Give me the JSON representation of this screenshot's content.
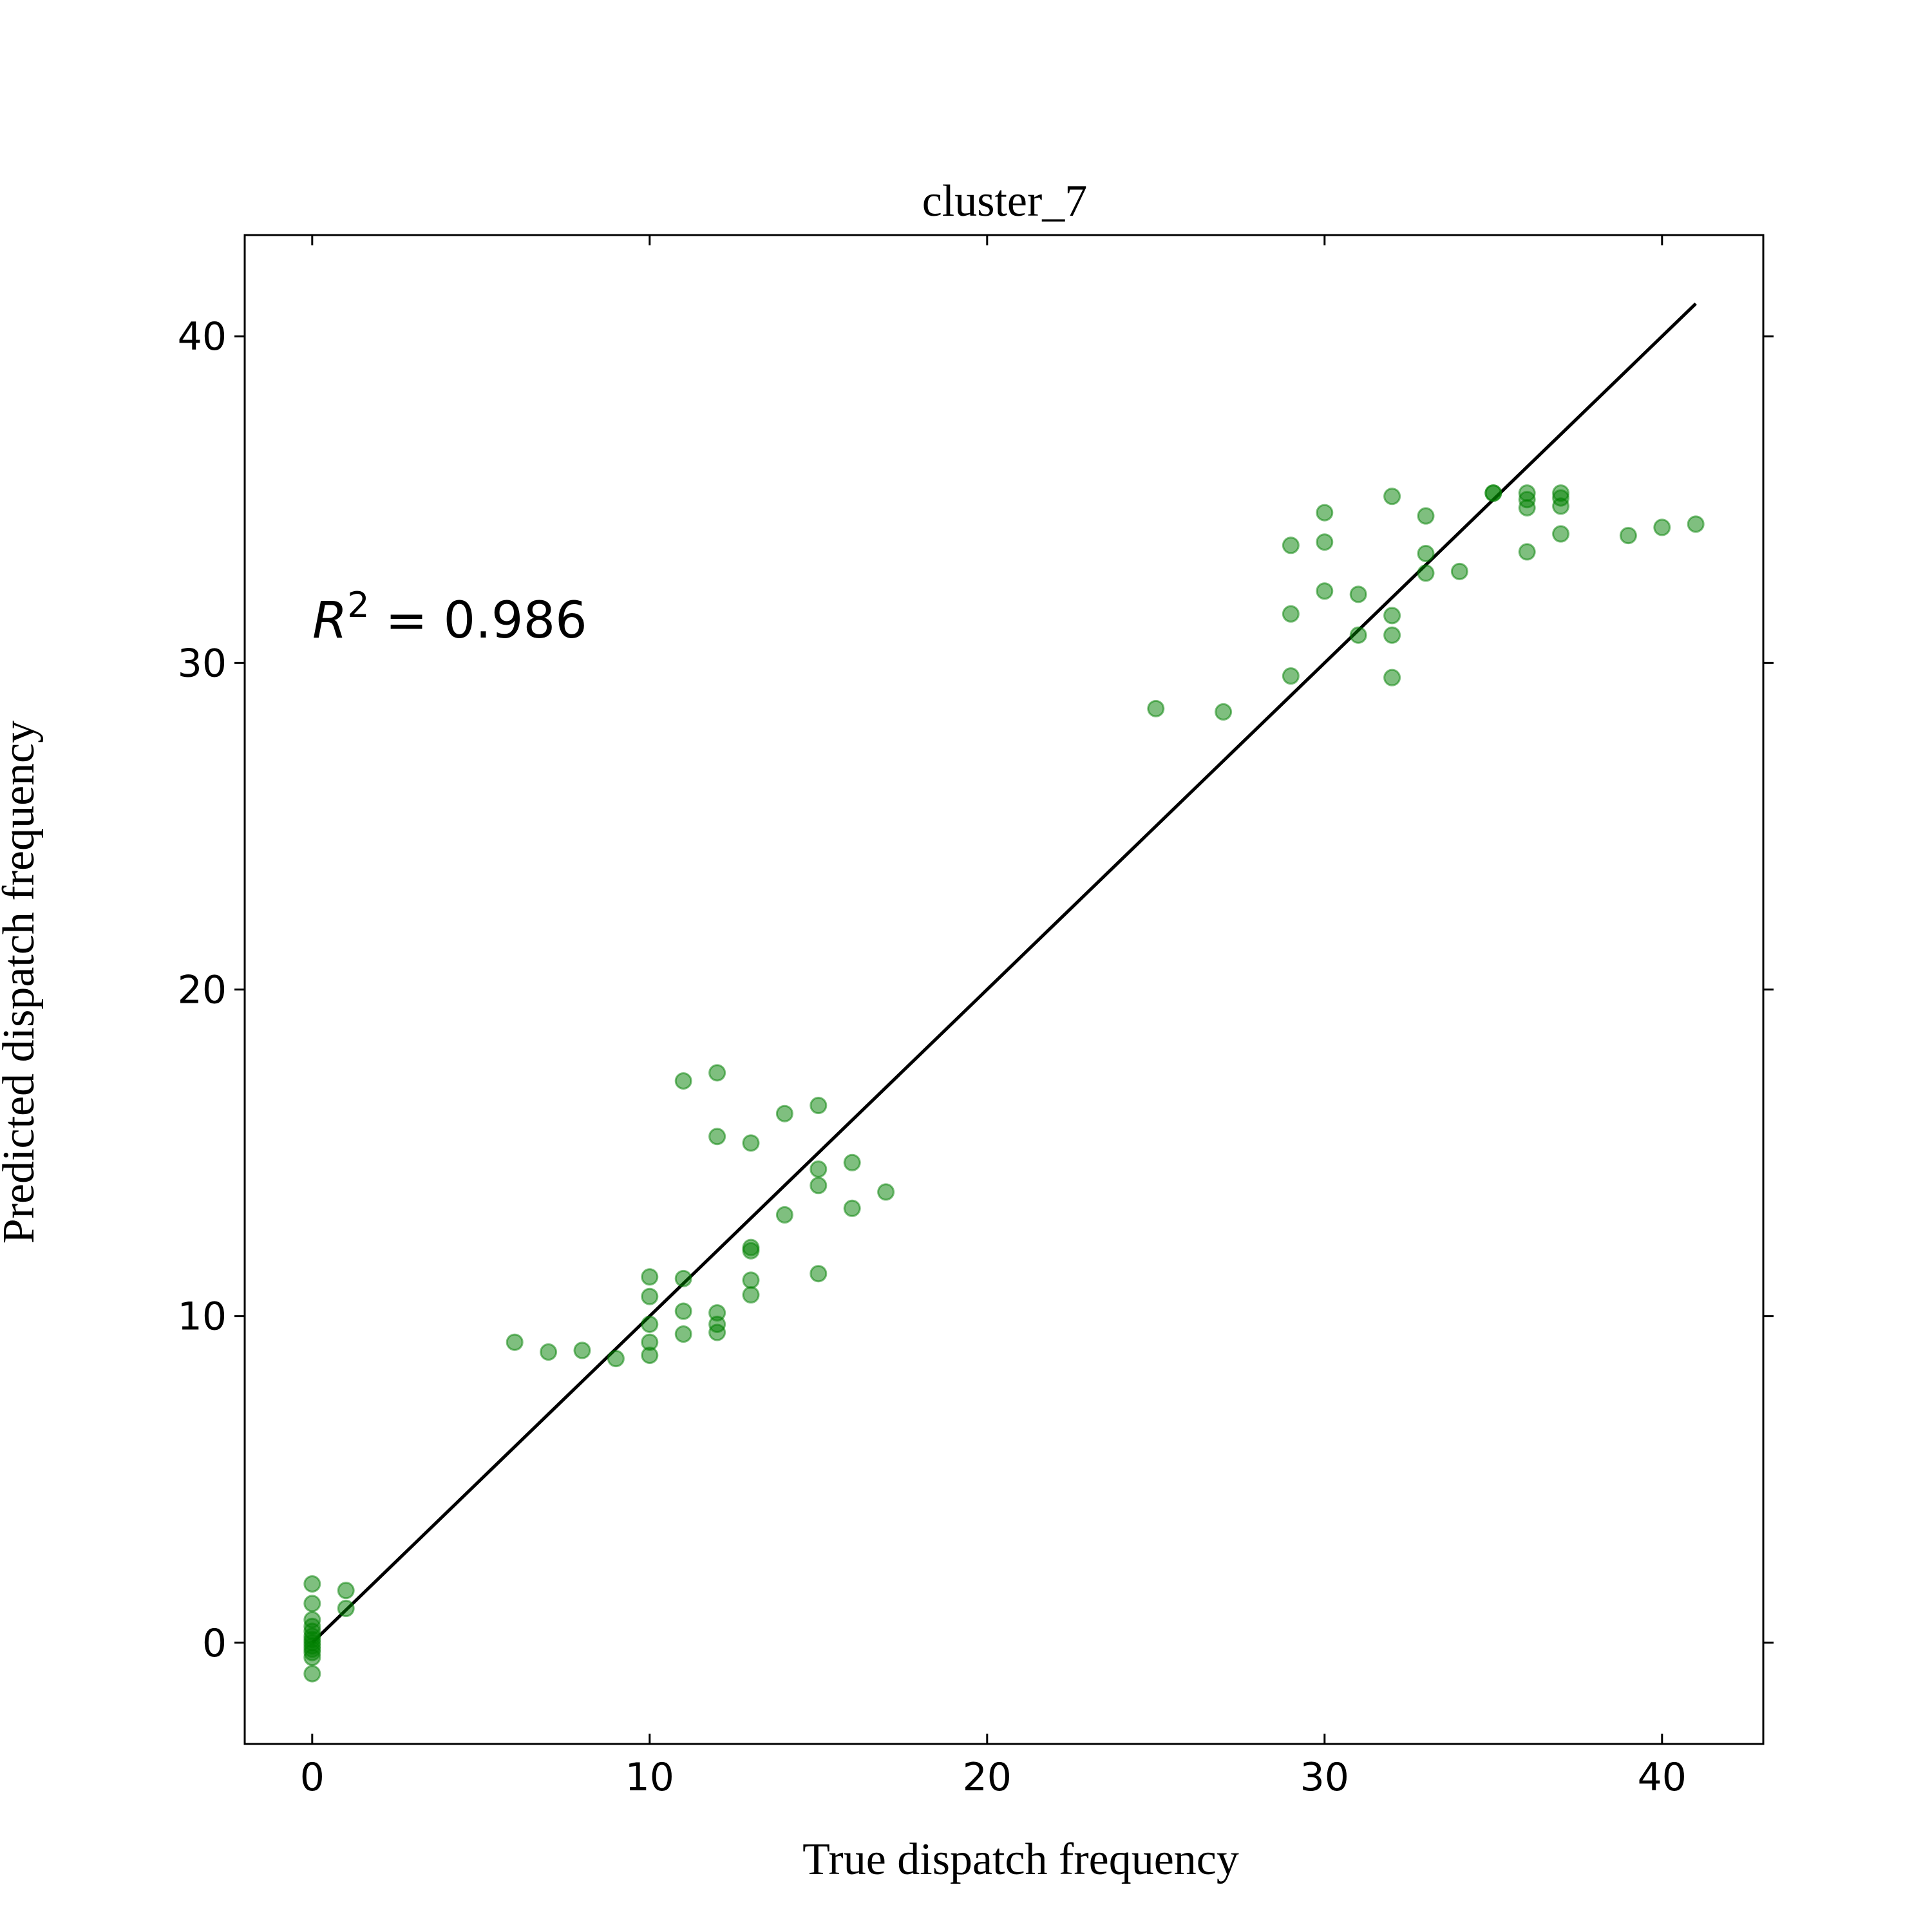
{
  "chart_data": {
    "type": "scatter",
    "title": "cluster_7",
    "xlabel": "True dispatch frequency",
    "ylabel": "Predicted dispatch frequency",
    "xlim": [
      -2,
      43
    ],
    "ylim": [
      -3.1,
      43.1
    ],
    "xticks": [
      0,
      10,
      20,
      30,
      40
    ],
    "yticks": [
      0,
      10,
      20,
      30,
      40
    ],
    "grid": false,
    "point_color": "#008000",
    "point_alpha": 0.5,
    "line_color": "#000000",
    "annotation": {
      "prefix": "R",
      "sup": "2",
      "text": " = 0.986"
    },
    "identity_line": {
      "x": [
        0,
        41
      ],
      "y": [
        0,
        41
      ]
    },
    "points": [
      [
        0,
        1.8
      ],
      [
        0,
        1.2
      ],
      [
        0,
        0.7
      ],
      [
        0,
        0.5
      ],
      [
        0,
        0.35
      ],
      [
        0,
        0.2
      ],
      [
        0,
        0.1
      ],
      [
        0,
        0.0
      ],
      [
        0,
        -0.1
      ],
      [
        0,
        -0.2
      ],
      [
        0,
        -0.3
      ],
      [
        0,
        -0.45
      ],
      [
        0,
        -0.95
      ],
      [
        1,
        1.6
      ],
      [
        1,
        1.05
      ],
      [
        6,
        9.2
      ],
      [
        7,
        8.9
      ],
      [
        8,
        8.95
      ],
      [
        9,
        8.7
      ],
      [
        10,
        11.2
      ],
      [
        10,
        10.6
      ],
      [
        10,
        9.75
      ],
      [
        10,
        9.2
      ],
      [
        10,
        8.8
      ],
      [
        11,
        17.2
      ],
      [
        11,
        11.15
      ],
      [
        11,
        10.15
      ],
      [
        11,
        9.45
      ],
      [
        12,
        17.45
      ],
      [
        12,
        15.5
      ],
      [
        12,
        10.1
      ],
      [
        12,
        9.75
      ],
      [
        12,
        9.5
      ],
      [
        13,
        15.3
      ],
      [
        13,
        12.1
      ],
      [
        13,
        12.0
      ],
      [
        13,
        11.1
      ],
      [
        13,
        10.65
      ],
      [
        14,
        16.2
      ],
      [
        14,
        13.1
      ],
      [
        15,
        16.45
      ],
      [
        15,
        14.5
      ],
      [
        15,
        14.0
      ],
      [
        15,
        11.3
      ],
      [
        16,
        14.7
      ],
      [
        16,
        13.3
      ],
      [
        17,
        13.8
      ],
      [
        25,
        28.6
      ],
      [
        27,
        28.5
      ],
      [
        29,
        33.6
      ],
      [
        29,
        31.5
      ],
      [
        29,
        29.6
      ],
      [
        30,
        34.6
      ],
      [
        30,
        33.7
      ],
      [
        30,
        32.2
      ],
      [
        31,
        32.1
      ],
      [
        31,
        30.85
      ],
      [
        32,
        35.1
      ],
      [
        32,
        31.45
      ],
      [
        32,
        30.85
      ],
      [
        32,
        29.55
      ],
      [
        33,
        34.5
      ],
      [
        33,
        33.35
      ],
      [
        33,
        32.75
      ],
      [
        34,
        32.8
      ],
      [
        35,
        35.2
      ],
      [
        35,
        35.2
      ],
      [
        36,
        35.2
      ],
      [
        36,
        35.0
      ],
      [
        36,
        34.75
      ],
      [
        36,
        33.4
      ],
      [
        37,
        35.2
      ],
      [
        37,
        35.05
      ],
      [
        37,
        34.8
      ],
      [
        37,
        33.95
      ],
      [
        39,
        33.9
      ],
      [
        40,
        34.15
      ],
      [
        41,
        34.25
      ]
    ]
  }
}
